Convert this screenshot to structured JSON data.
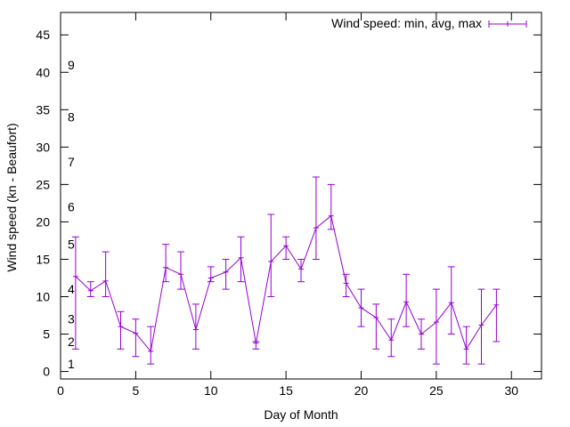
{
  "chart_data": {
    "type": "line",
    "xlabel": "Day of Month",
    "ylabel": "Wind speed (kn - Beaufort)",
    "xlim": [
      0,
      32
    ],
    "ylim": [
      -1,
      48
    ],
    "x_ticks": [
      0,
      5,
      10,
      15,
      20,
      25,
      30
    ],
    "y_ticks": [
      0,
      5,
      10,
      15,
      20,
      25,
      30,
      35,
      40,
      45
    ],
    "grid": false,
    "legend_position": "top-right",
    "beaufort_labels": [
      {
        "label": "1",
        "y": 1
      },
      {
        "label": "2",
        "y": 4
      },
      {
        "label": "3",
        "y": 7
      },
      {
        "label": "4",
        "y": 11
      },
      {
        "label": "5",
        "y": 17
      },
      {
        "label": "6",
        "y": 22
      },
      {
        "label": "7",
        "y": 28
      },
      {
        "label": "8",
        "y": 34
      },
      {
        "label": "9",
        "y": 41
      }
    ],
    "series": [
      {
        "name": "Wind speed: min, avg, max",
        "color": "#9400d3",
        "points": [
          {
            "x": 1,
            "avg": 12.7,
            "min": 3,
            "max": 18
          },
          {
            "x": 2,
            "avg": 10.8,
            "min": 10,
            "max": 12
          },
          {
            "x": 3,
            "avg": 12.1,
            "min": 10,
            "max": 16
          },
          {
            "x": 4,
            "avg": 6,
            "min": 3,
            "max": 8
          },
          {
            "x": 5,
            "avg": 5.1,
            "min": 2,
            "max": 7
          },
          {
            "x": 6,
            "avg": 2.7,
            "min": 1,
            "max": 6
          },
          {
            "x": 7,
            "avg": 13.9,
            "min": 12,
            "max": 17
          },
          {
            "x": 8,
            "avg": 13,
            "min": 11,
            "max": 16
          },
          {
            "x": 9,
            "avg": 5.6,
            "min": 3,
            "max": 9
          },
          {
            "x": 10,
            "avg": 12.5,
            "min": 12,
            "max": 14
          },
          {
            "x": 11,
            "avg": 13.3,
            "min": 11,
            "max": 15
          },
          {
            "x": 12,
            "avg": 15.2,
            "min": 12,
            "max": 18
          },
          {
            "x": 13,
            "avg": 3.8,
            "min": 3,
            "max": 4
          },
          {
            "x": 14,
            "avg": 14.7,
            "min": 10,
            "max": 21
          },
          {
            "x": 15,
            "avg": 16.8,
            "min": 15,
            "max": 18
          },
          {
            "x": 16,
            "avg": 13.7,
            "min": 12,
            "max": 15
          },
          {
            "x": 17,
            "avg": 19.2,
            "min": 15,
            "max": 26
          },
          {
            "x": 18,
            "avg": 20.8,
            "min": 19,
            "max": 25
          },
          {
            "x": 19,
            "avg": 11.8,
            "min": 10,
            "max": 13
          },
          {
            "x": 20,
            "avg": 8.5,
            "min": 6,
            "max": 11
          },
          {
            "x": 21,
            "avg": 7.2,
            "min": 3,
            "max": 9
          },
          {
            "x": 22,
            "avg": 4.2,
            "min": 2,
            "max": 7
          },
          {
            "x": 23,
            "avg": 9.3,
            "min": 6,
            "max": 13
          },
          {
            "x": 24,
            "avg": 5,
            "min": 3,
            "max": 7
          },
          {
            "x": 25,
            "avg": 6.6,
            "min": 1,
            "max": 11
          },
          {
            "x": 26,
            "avg": 9.2,
            "min": 5,
            "max": 14
          },
          {
            "x": 27,
            "avg": 3,
            "min": 1,
            "max": 6
          },
          {
            "x": 28,
            "avg": 6.2,
            "min": 1,
            "max": 11
          },
          {
            "x": 29,
            "avg": 8.9,
            "min": 4,
            "max": 11
          }
        ]
      }
    ]
  }
}
